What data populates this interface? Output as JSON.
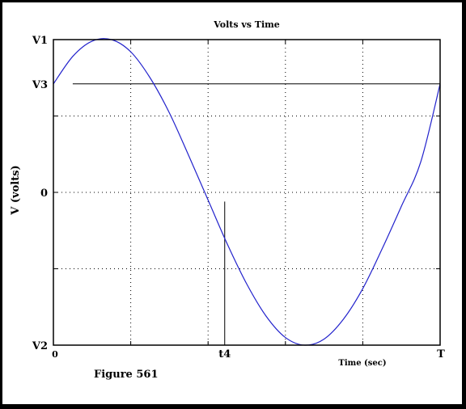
{
  "figure_caption": "Figure 561",
  "chart_data": {
    "type": "line",
    "title": "Volts vs Time",
    "xlabel": "Time (sec)",
    "ylabel": "V (volts)",
    "x_range": [
      0,
      1
    ],
    "y_range": [
      -1,
      1
    ],
    "grid": true,
    "x_tick_labels": [
      {
        "x": 0,
        "label": "0"
      },
      {
        "x": 0.443,
        "label": "t4"
      },
      {
        "x": 1,
        "label": "T"
      }
    ],
    "y_tick_labels": [
      {
        "y": 1,
        "label": "V1"
      },
      {
        "y": 0.71,
        "label": "V3"
      },
      {
        "y": 0,
        "label": "0"
      },
      {
        "y": -1,
        "label": "V2"
      }
    ],
    "x_gridlines": [
      0.2,
      0.4,
      0.6,
      0.8
    ],
    "y_gridlines": [
      0.5,
      -0.5
    ],
    "series": [
      {
        "color": "#2222cc",
        "x": [
          0,
          0.05,
          0.1,
          0.15,
          0.2,
          0.25,
          0.3,
          0.35,
          0.4,
          0.45,
          0.5,
          0.55,
          0.6,
          0.65,
          0.7,
          0.75,
          0.8,
          0.85,
          0.9,
          0.95,
          1
        ],
        "y": [
          0.71,
          0.89,
          0.99,
          1.0,
          0.92,
          0.75,
          0.52,
          0.24,
          -0.05,
          -0.34,
          -0.6,
          -0.81,
          -0.95,
          -1.0,
          -0.96,
          -0.83,
          -0.63,
          -0.37,
          -0.09,
          0.2,
          0.71
        ]
      }
    ],
    "annotations": [
      {
        "type": "hline",
        "y": 0.71,
        "x_from": 0.05,
        "x_to": 1,
        "color": "#000000"
      },
      {
        "type": "vline",
        "x": 0.443,
        "y_from": -1,
        "y_to": -0.06,
        "color": "#000000"
      }
    ]
  }
}
